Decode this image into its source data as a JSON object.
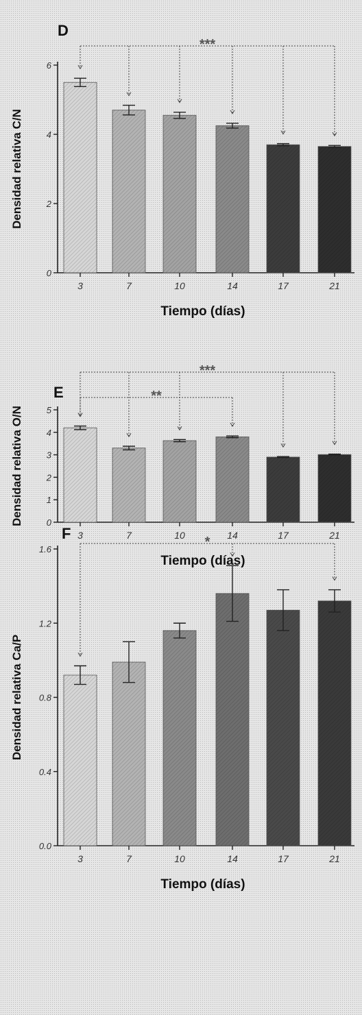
{
  "chart_data": [
    {
      "panel_label": "D",
      "type": "bar",
      "ylabel": "Densidad relativa C/N",
      "xlabel": "Tiempo (días)",
      "categories": [
        "3",
        "7",
        "10",
        "14",
        "17",
        "21"
      ],
      "values": [
        5.5,
        4.7,
        4.55,
        4.25,
        3.7,
        3.65
      ],
      "errors": [
        0.12,
        0.14,
        0.09,
        0.07,
        0.03,
        0.03
      ],
      "ylim": [
        0,
        6
      ],
      "yticks": [
        "0",
        "2",
        "4",
        "6"
      ],
      "ytick_values": [
        0,
        2,
        4,
        6
      ],
      "significance": [
        {
          "label": "***",
          "from": "3",
          "to": [
            "7",
            "10",
            "14",
            "17",
            "21"
          ]
        }
      ],
      "colors": [
        "#d6d6d6",
        "#b3b3b3",
        "#a3a3a3",
        "#8a8a8a",
        "#3c3c3c",
        "#2e2e2e"
      ]
    },
    {
      "panel_label": "E",
      "type": "bar",
      "ylabel": "Densidad relativa O/N",
      "xlabel": "Tiempo (días)",
      "categories": [
        "3",
        "7",
        "10",
        "14",
        "17",
        "21"
      ],
      "values": [
        4.2,
        3.3,
        3.63,
        3.8,
        2.9,
        3.01
      ],
      "errors": [
        0.08,
        0.08,
        0.05,
        0.04,
        0.02,
        0.02
      ],
      "ylim": [
        0,
        5
      ],
      "yticks": [
        "0",
        "1",
        "2",
        "3",
        "4",
        "5"
      ],
      "ytick_values": [
        0,
        1,
        2,
        3,
        4,
        5
      ],
      "significance": [
        {
          "label": "***",
          "from": "3",
          "to": [
            "7",
            "10",
            "17",
            "21"
          ]
        },
        {
          "label": "**",
          "from": "3",
          "to": [
            "14"
          ]
        }
      ],
      "colors": [
        "#d6d6d6",
        "#b3b3b3",
        "#a3a3a3",
        "#8a8a8a",
        "#3c3c3c",
        "#2e2e2e"
      ]
    },
    {
      "panel_label": "F",
      "type": "bar",
      "ylabel": "Densidad relativa Ca/P",
      "xlabel": "Tiempo (días)",
      "categories": [
        "3",
        "7",
        "10",
        "14",
        "17",
        "21"
      ],
      "values": [
        0.92,
        0.99,
        1.16,
        1.36,
        1.27,
        1.32
      ],
      "errors": [
        0.05,
        0.11,
        0.04,
        0.15,
        0.11,
        0.06
      ],
      "ylim": [
        0,
        1.8
      ],
      "yticks": [
        "0.0",
        "0.4",
        "0.8",
        "1.2",
        "1.6"
      ],
      "ytick_values": [
        0,
        0.4,
        0.8,
        1.2,
        1.6
      ],
      "significance": [
        {
          "label": "*",
          "from": "3",
          "to": [
            "14",
            "21"
          ]
        }
      ],
      "colors": [
        "#d6d6d6",
        "#b3b3b3",
        "#8a8a8a",
        "#6e6e6e",
        "#4a4a4a",
        "#3a3a3a"
      ]
    }
  ]
}
